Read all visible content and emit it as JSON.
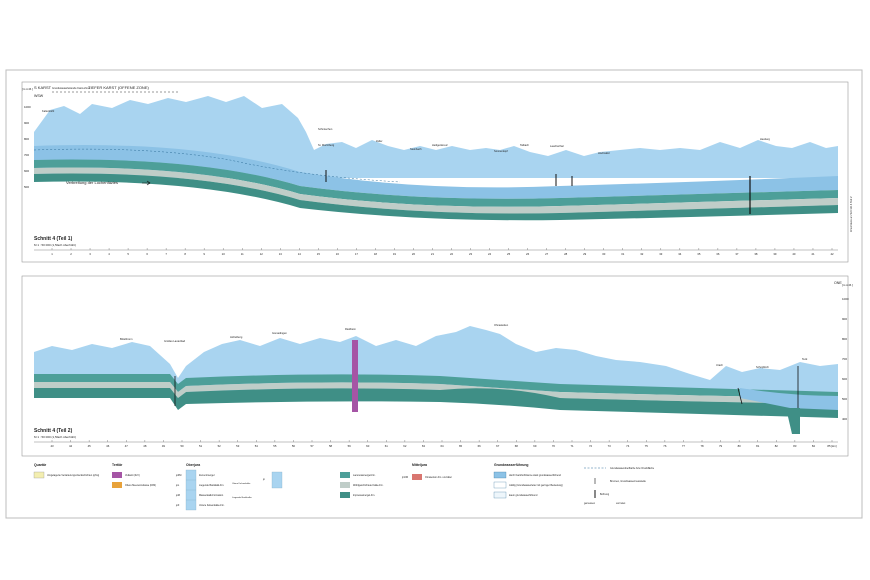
{
  "section1": {
    "header_left": "S  KARST",
    "header_small": "Grundwasserleitende Karst-Zone",
    "header_right": "TIEFER KARST (OFFENE ZONE)",
    "direction": "WSW",
    "elev_unit": "[m ü.M.]",
    "elev_labels": [
      "1000",
      "900",
      "800",
      "700",
      "600",
      "500"
    ],
    "title": "Schnitt 4 (Teil 1)",
    "scale": "M 1 : 50 000 (1,5fach überhöht)",
    "note": "Verbreitung der Lochenfazies",
    "side_note": "Anschluss an Schnitt 4 Teil 2",
    "place_labels": [
      "Kaltenbühl",
      "Schmiechen",
      "St. Moritzberg",
      "Zeller",
      "Heiligenkreuz",
      "Sonnenkopf",
      "Steinbach",
      "Hochwäld",
      "Talbach",
      "Laucherthal",
      "Heuberg"
    ],
    "ticks": [
      "1",
      "2",
      "3",
      "4",
      "5",
      "6",
      "7",
      "8",
      "9",
      "10",
      "11",
      "12",
      "13",
      "14",
      "15",
      "16",
      "17",
      "18",
      "19",
      "20",
      "21",
      "22",
      "23",
      "24",
      "25",
      "26",
      "27",
      "28",
      "29",
      "30",
      "31",
      "32",
      "33",
      "34",
      "35",
      "36",
      "37",
      "38",
      "39",
      "40",
      "41",
      "42"
    ]
  },
  "section2": {
    "direction": "ONE",
    "elev_unit": "[m ü.M.]",
    "elev_labels": [
      "1000",
      "900",
      "800",
      "700",
      "600",
      "500",
      "400"
    ],
    "title": "Schnitt 4 (Teil 2)",
    "scale": "M 1 : 50 000 (1,5fach überhöht)",
    "place_labels": [
      "Bittelbronn",
      "Großes Lauterbad",
      "Aichelberg",
      "Gomadingen",
      "Riedheim",
      "Ohnastetten",
      "Urach",
      "Schopfloch",
      "Teck"
    ],
    "ticks": [
      "43",
      "44",
      "45",
      "46",
      "47",
      "48",
      "49",
      "50",
      "51",
      "52",
      "53",
      "54",
      "55",
      "56",
      "57",
      "58",
      "59",
      "60",
      "61",
      "62",
      "63",
      "64",
      "65",
      "66",
      "67",
      "68",
      "69",
      "70",
      "71",
      "72",
      "73",
      "74",
      "75",
      "76",
      "77",
      "78",
      "79",
      "80",
      "81",
      "82",
      "83",
      "84",
      "85 [km]"
    ]
  },
  "legend": {
    "quartaer": {
      "title": "Quartär",
      "items": [
        "Umgelagerte Verwitterungs-Deckschichten (qh/q)"
      ]
    },
    "tertiaer": {
      "title": "Tertiär",
      "items": [
        "Vulkanit (tUV)",
        "Obere Meeresmolasse (tOM)"
      ]
    },
    "oberjura": {
      "title": "Oberjura",
      "items": [
        "Zementmergel",
        "Liegende Bankkalk-Fm.",
        "Massenkalk-Formation",
        "Untere Felsenkalke-Fm.",
        "Lacunosamergel-Fm.",
        "Wohlgeschichtete Kalke-Fm.",
        "Impressamergel-Fm."
      ],
      "codes": [
        "joZM",
        "joL",
        "joM",
        "joF",
        "jo"
      ],
      "group_labels": [
        "Obere Felsenkalke",
        "Liegende Bankkalke"
      ]
    },
    "mitteljura": {
      "title": "Mitteljura",
      "items": [
        "Ornatenton-Fm. und älter"
      ],
      "codes": [
        "jmOR"
      ]
    },
    "grundwasser": {
      "title": "Grundwasserführung",
      "items": [
        "durch Karsthohlräume stark grundwasserführend",
        "mäßig (Grundwasserleiter mit geringer Bedeutung)",
        "kaum grundwasserführend"
      ]
    },
    "symbols": {
      "items": [
        "Grundwasseroberfläche bzw. Druckfläche",
        "Brunnen, Grundwassermessstelle",
        "Bohrung"
      ],
      "colors": [
        "#4aa6d6",
        "#d24a3a"
      ],
      "color_labels": [
        "gemessen",
        "vermutet"
      ]
    }
  },
  "colors": {
    "limestone": "#a9d4f0",
    "karst": "#8cc2e6",
    "marl_dark": "#4d9f99",
    "marl_mid": "#6bb0a8",
    "grey_band": "#bfcdc8",
    "base": "#3f8f86",
    "volcanic": "#a555a5",
    "molasse": "#e8a23a",
    "quaternary": "#f3eeb0",
    "ornaten": "#d97670"
  }
}
